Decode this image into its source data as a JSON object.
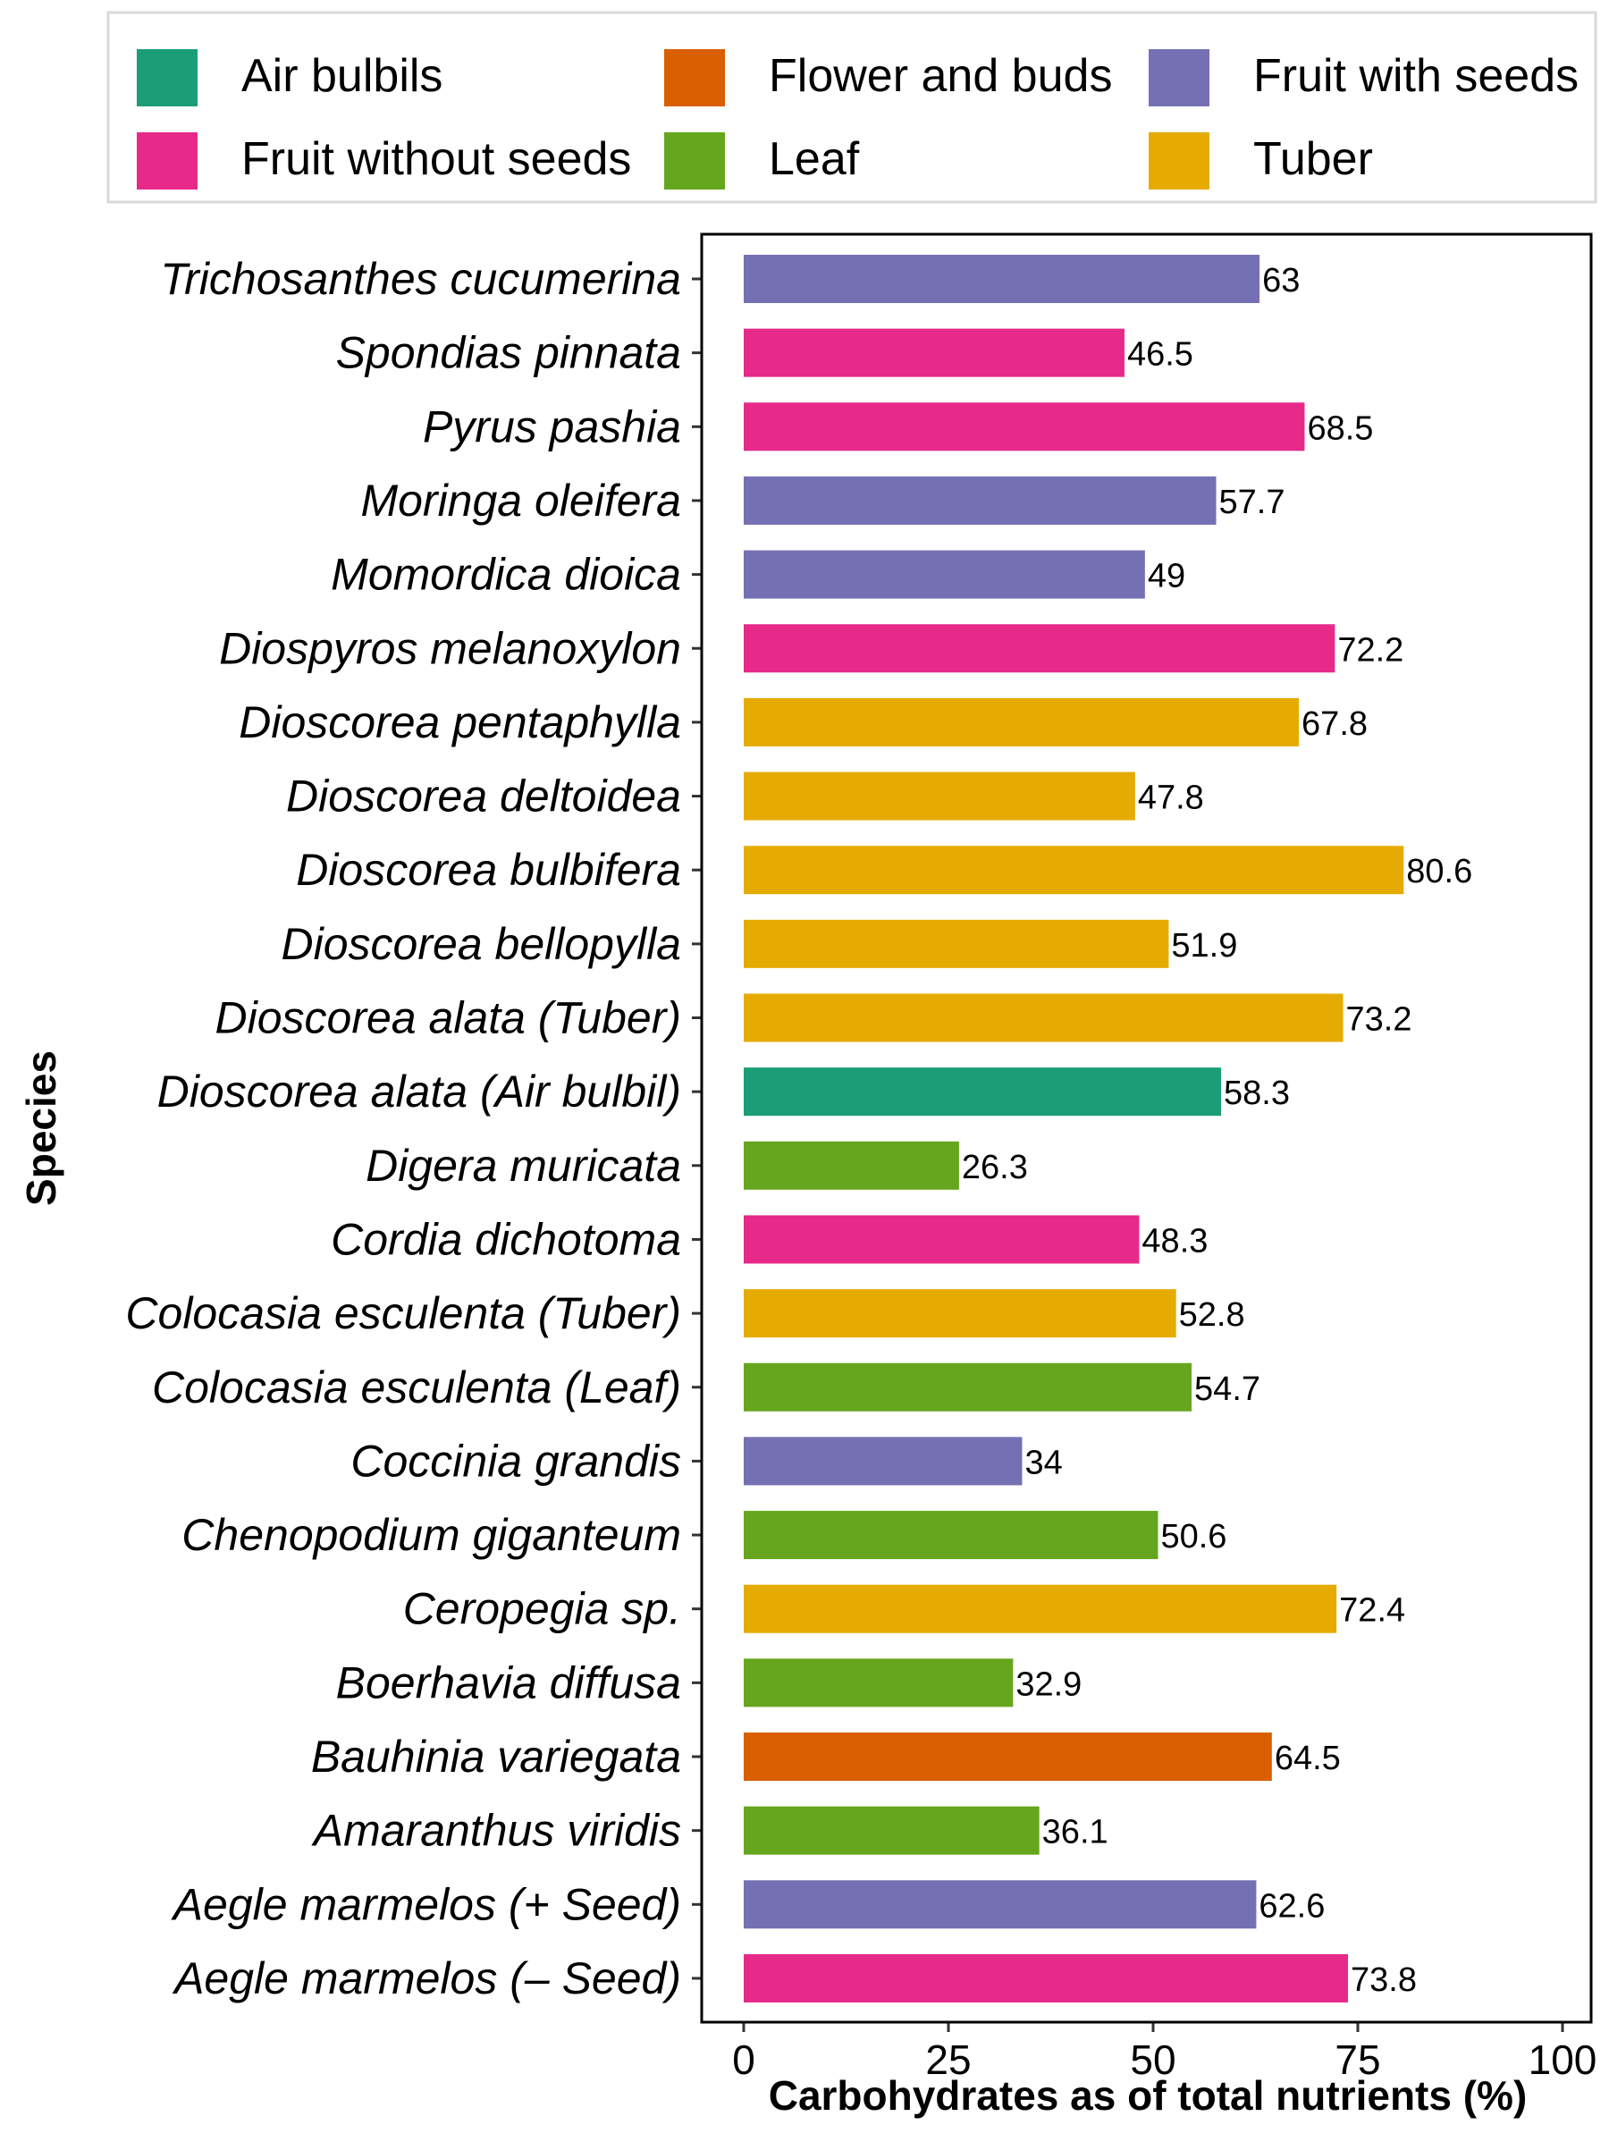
{
  "chart_data": {
    "type": "bar",
    "orientation": "horizontal",
    "xlabel": "Carbohydrates as of total nutrients (%)",
    "ylabel": "Species",
    "xlim": [
      0,
      100
    ],
    "xticks": [
      "0",
      "25",
      "50",
      "75",
      "100"
    ],
    "grid": false,
    "legend_position": "top",
    "legend": [
      {
        "name": "Air bulbils",
        "color": "#1b9e77"
      },
      {
        "name": "Flower and buds",
        "color": "#d95f02"
      },
      {
        "name": "Fruit with seeds",
        "color": "#7570b3"
      },
      {
        "name": "Fruit without seeds",
        "color": "#e7298a"
      },
      {
        "name": "Leaf",
        "color": "#66a61e"
      },
      {
        "name": "Tuber",
        "color": "#e6ab02"
      }
    ],
    "bars": [
      {
        "category": "Trichosanthes cucumerina",
        "value": 63,
        "label": "63",
        "group": "Fruit with seeds"
      },
      {
        "category": "Spondias pinnata",
        "value": 46.5,
        "label": "46.5",
        "group": "Fruit without seeds"
      },
      {
        "category": "Pyrus pashia",
        "value": 68.5,
        "label": "68.5",
        "group": "Fruit without seeds"
      },
      {
        "category": "Moringa oleifera",
        "value": 57.7,
        "label": "57.7",
        "group": "Fruit with seeds"
      },
      {
        "category": "Momordica dioica",
        "value": 49,
        "label": "49",
        "group": "Fruit with seeds"
      },
      {
        "category": "Diospyros melanoxylon",
        "value": 72.2,
        "label": "72.2",
        "group": "Fruit without seeds"
      },
      {
        "category": "Dioscorea pentaphylla",
        "value": 67.8,
        "label": "67.8",
        "group": "Tuber"
      },
      {
        "category": "Dioscorea deltoidea",
        "value": 47.8,
        "label": "47.8",
        "group": "Tuber"
      },
      {
        "category": "Dioscorea bulbifera",
        "value": 80.6,
        "label": "80.6",
        "group": "Tuber"
      },
      {
        "category": "Dioscorea bellopylla",
        "value": 51.9,
        "label": "51.9",
        "group": "Tuber"
      },
      {
        "category": "Dioscorea alata (Tuber)",
        "value": 73.2,
        "label": "73.2",
        "group": "Tuber"
      },
      {
        "category": "Dioscorea alata (Air bulbil)",
        "value": 58.3,
        "label": "58.3",
        "group": "Air bulbils"
      },
      {
        "category": "Digera muricata",
        "value": 26.3,
        "label": "26.3",
        "group": "Leaf"
      },
      {
        "category": "Cordia dichotoma",
        "value": 48.3,
        "label": "48.3",
        "group": "Fruit without seeds"
      },
      {
        "category": "Colocasia esculenta (Tuber)",
        "value": 52.8,
        "label": "52.8",
        "group": "Tuber"
      },
      {
        "category": "Colocasia esculenta (Leaf)",
        "value": 54.7,
        "label": "54.7",
        "group": "Leaf"
      },
      {
        "category": "Coccinia grandis",
        "value": 34,
        "label": "34",
        "group": "Fruit with seeds"
      },
      {
        "category": "Chenopodium giganteum",
        "value": 50.6,
        "label": "50.6",
        "group": "Leaf"
      },
      {
        "category": "Ceropegia sp.",
        "value": 72.4,
        "label": "72.4",
        "group": "Tuber"
      },
      {
        "category": "Boerhavia diffusa",
        "value": 32.9,
        "label": "32.9",
        "group": "Leaf"
      },
      {
        "category": "Bauhinia variegata",
        "value": 64.5,
        "label": "64.5",
        "group": "Flower and buds"
      },
      {
        "category": "Amaranthus viridis",
        "value": 36.1,
        "label": "36.1",
        "group": "Leaf"
      },
      {
        "category": "Aegle marmelos (+ Seed)",
        "value": 62.6,
        "label": "62.6",
        "group": "Fruit with seeds"
      },
      {
        "category": "Aegle marmelos (– Seed)",
        "value": 73.8,
        "label": "73.8",
        "group": "Fruit without seeds"
      }
    ]
  }
}
